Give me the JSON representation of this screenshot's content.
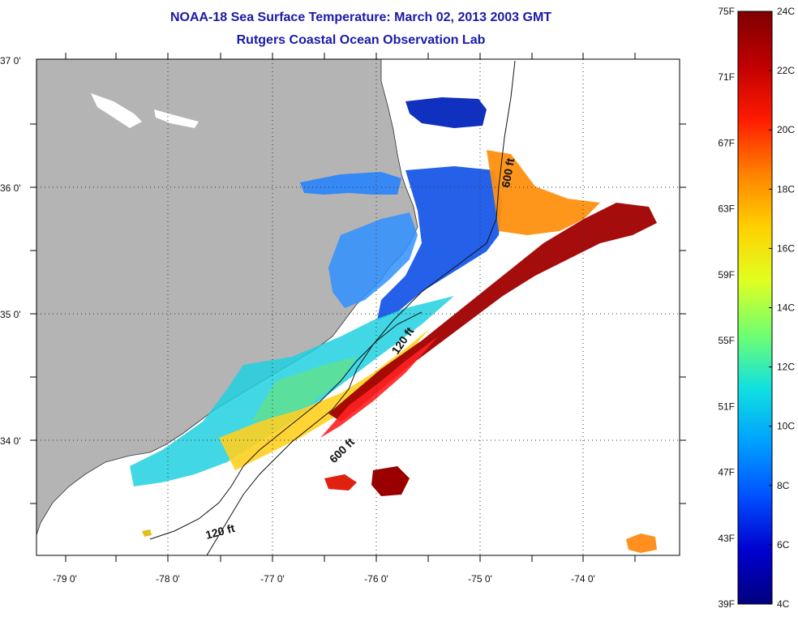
{
  "title": {
    "line1": "NOAA-18 Sea Surface Temperature:  March 02, 2013 2003 GMT",
    "line2": "Rutgers Coastal Ocean Observation Lab"
  },
  "longitude_labels": [
    "-79 0'",
    "-78 0'",
    "-77 0'",
    "-76 0'",
    "-75 0'",
    "-74 0'"
  ],
  "latitude_labels": [
    "37 0'",
    "36 0'",
    "35 0'",
    "34 0'"
  ],
  "contour_labels": [
    "600 ft",
    "120 ft",
    "600 ft",
    "120 ft"
  ],
  "colorbar": {
    "fahrenheit_labels": [
      "75F",
      "71F",
      "67F",
      "63F",
      "59F",
      "55F",
      "51F",
      "47F",
      "43F",
      "39F"
    ],
    "celsius_labels": [
      "24C",
      "22C",
      "20C",
      "18C",
      "16C",
      "14C",
      "12C",
      "10C",
      "8C",
      "6C",
      "4C"
    ],
    "gradient_colors": [
      "#7f0000",
      "#c00000",
      "#ff1a00",
      "#ff8000",
      "#ffd000",
      "#e0ff20",
      "#70ff70",
      "#10e0e0",
      "#00a0ff",
      "#0050ff",
      "#0000d0",
      "#00007f"
    ]
  },
  "colors": {
    "land": "#b4b4b4",
    "ocean_nodata": "#ffffff",
    "title_text": "#1a1aa8"
  }
}
